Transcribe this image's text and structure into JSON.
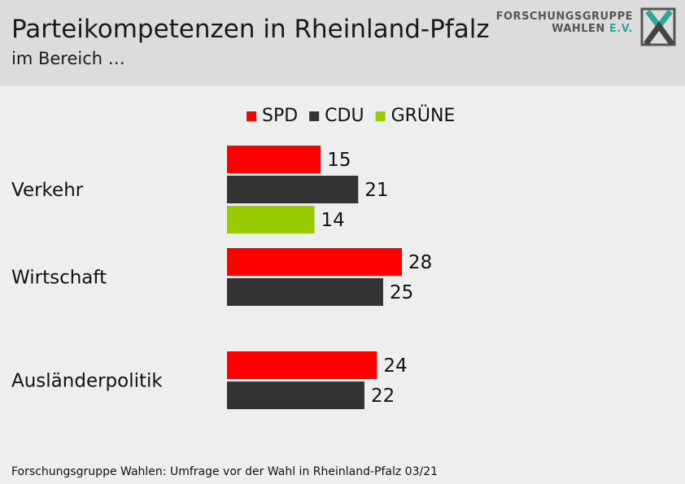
{
  "header": {
    "title": "Parteikompetenzen in Rheinland-Pfalz",
    "subtitle": "im Bereich …"
  },
  "logo": {
    "line1": "FORSCHUNGSGRUPPE",
    "line2": "WAHLEN",
    "line2_suffix": "E.V.",
    "icon": "fgw-x-logo-icon"
  },
  "chart_data": {
    "type": "bar",
    "orientation": "horizontal",
    "categories": [
      "Verkehr",
      "Wirtschaft",
      "Ausländerpolitik"
    ],
    "series": [
      {
        "name": "SPD",
        "color": "#ff0000",
        "values": [
          15,
          28,
          24
        ]
      },
      {
        "name": "CDU",
        "color": "#333333",
        "values": [
          21,
          25,
          22
        ]
      },
      {
        "name": "GRÜNE",
        "color": "#99cc00",
        "values": [
          14,
          null,
          null
        ]
      }
    ],
    "legend": "top-center",
    "grid": false,
    "data_labels": true
  },
  "footer": {
    "source": "Forschungsgruppe Wahlen: Umfrage vor der Wahl in Rheinland-Pfalz 03/21"
  }
}
